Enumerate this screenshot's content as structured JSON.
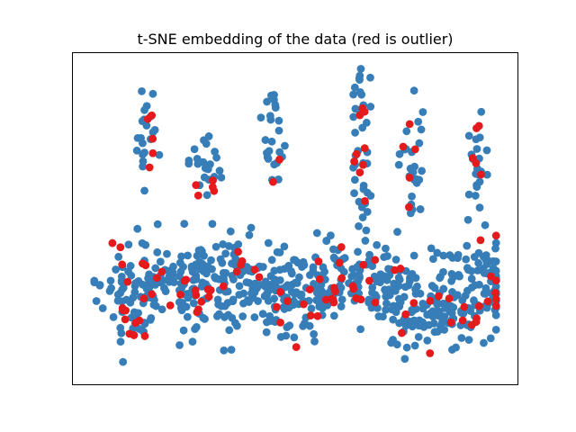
{
  "chart_data": {
    "type": "scatter",
    "title": "t-SNE embedding of the data (red is outlier)",
    "xlabel": "",
    "ylabel": "",
    "axes_ticks_visible": false,
    "grid": false,
    "legend": null,
    "series": [
      {
        "color": "#377eb8",
        "points": []
      },
      {
        "color": "#e41a1c",
        "points": []
      }
    ]
  }
}
